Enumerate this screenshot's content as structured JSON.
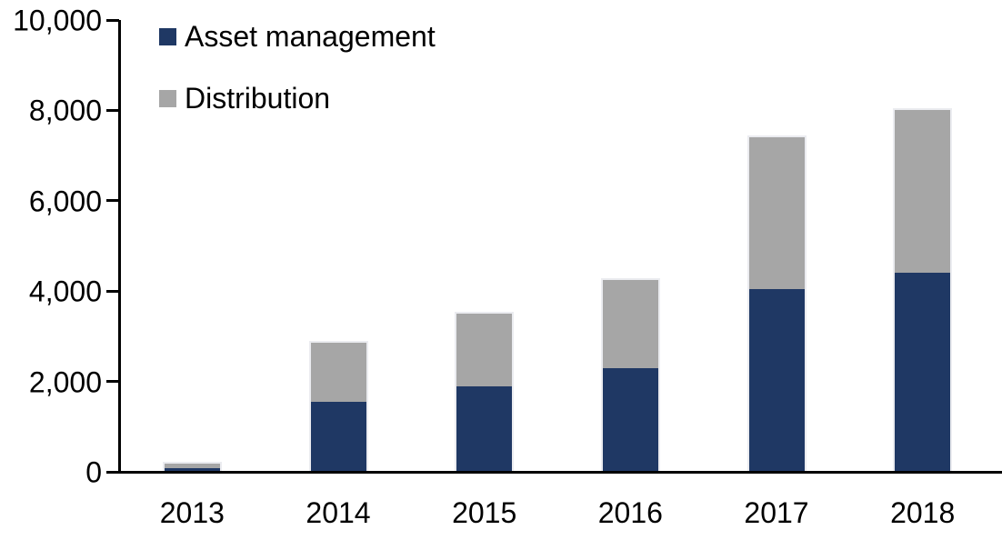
{
  "chart_data": {
    "type": "bar",
    "stacked": true,
    "title": "",
    "xlabel": "",
    "ylabel": "",
    "categories": [
      "2013",
      "2014",
      "2015",
      "2016",
      "2017",
      "2018"
    ],
    "series": [
      {
        "name": "Asset management",
        "color": "#1f3864",
        "values": [
          80,
          1550,
          1900,
          2300,
          4050,
          4400
        ]
      },
      {
        "name": "Distribution",
        "color": "#a6a6a6",
        "values": [
          100,
          1310,
          1600,
          1950,
          3350,
          3600
        ]
      }
    ],
    "totals": [
      180,
      2860,
      3500,
      4250,
      7400,
      8000
    ],
    "ylim": [
      0,
      10000
    ],
    "ytick_interval": 2000,
    "ytick_labels": [
      "0",
      "2,000",
      "4,000",
      "6,000",
      "8,000",
      "10,000"
    ],
    "grid": false,
    "legend_position": "top-left-inside",
    "axis_color": "#000000",
    "background_color": "#ffffff"
  }
}
